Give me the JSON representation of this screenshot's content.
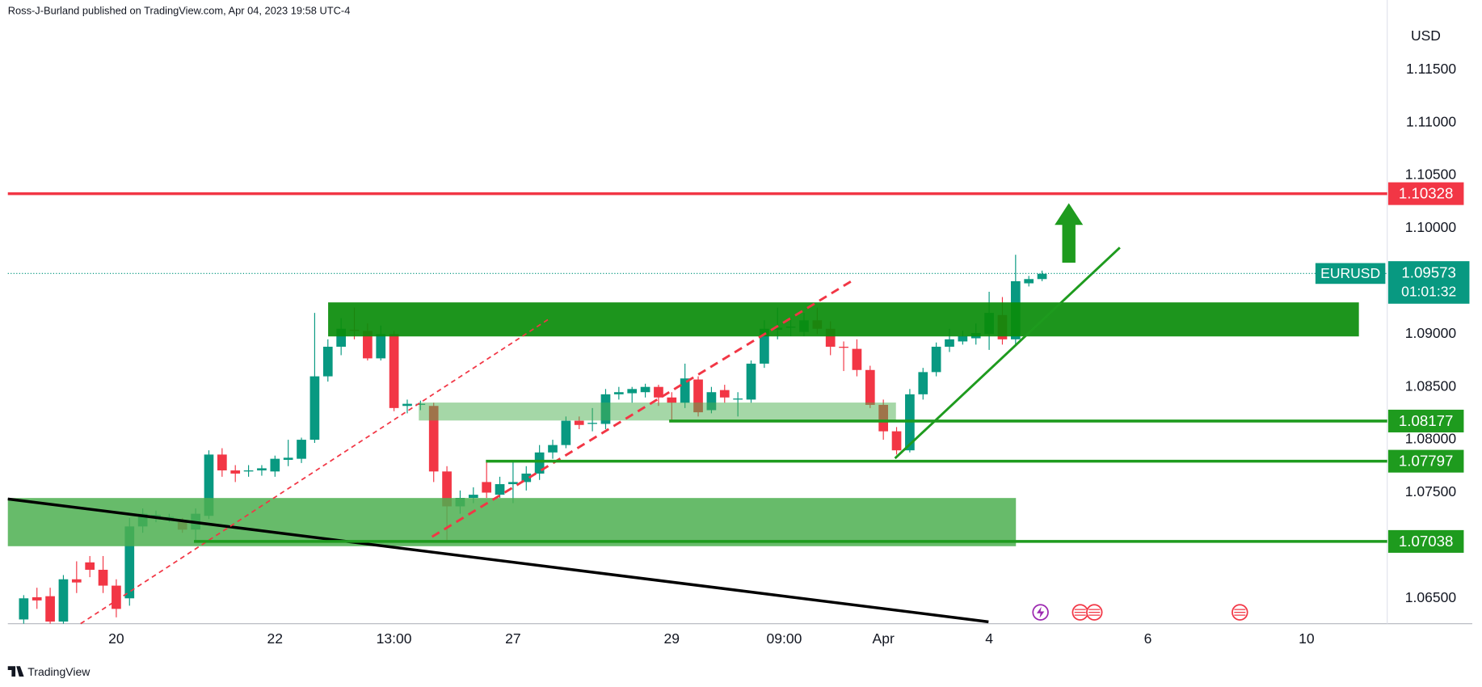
{
  "header": {
    "publisher": "Ross-J-Burland published on TradingView.com, Apr 04, 2023 19:58 UTC-4",
    "brand": "TradingView"
  },
  "chart_data": {
    "type": "candlestick",
    "currency": "USD",
    "x": [
      0,
      1,
      2,
      3,
      4,
      5,
      6,
      7,
      8,
      9,
      10,
      11,
      12,
      13,
      14,
      15,
      16,
      17,
      18,
      19,
      20,
      21,
      22,
      23,
      24,
      25,
      26,
      27,
      28,
      29,
      30,
      31,
      32,
      33,
      34,
      35,
      36,
      37,
      38,
      39,
      40,
      41,
      42,
      43,
      44,
      45,
      46,
      47,
      48,
      49,
      50,
      51,
      52,
      53,
      54,
      55,
      56,
      57,
      58,
      59,
      60,
      61,
      62,
      63,
      64,
      65,
      66,
      67,
      68,
      69,
      70,
      71,
      72,
      73,
      74,
      75,
      76,
      77
    ],
    "series": [
      {
        "name": "EURUSD",
        "up_color": "#089981",
        "down_color": "#f23645",
        "countdown": "01:01:32",
        "last": 1.09573,
        "open": [
          1.063,
          1.0651,
          1.0652,
          1.0628,
          1.0668,
          1.0684,
          1.0677,
          1.0662,
          1.065,
          1.0718,
          1.0727,
          1.0726,
          1.0722,
          1.0715,
          1.0728,
          1.0786,
          1.0771,
          1.077,
          1.0771,
          1.077,
          1.0781,
          1.0782,
          1.08,
          1.086,
          1.0888,
          1.0904,
          1.0903,
          1.0877,
          1.09,
          1.0832,
          1.0833,
          1.0832,
          1.077,
          1.0737,
          1.0745,
          1.076,
          1.0748,
          1.0758,
          1.076,
          1.0768,
          1.0788,
          1.0795,
          1.0818,
          1.0815,
          1.0815,
          1.0843,
          1.0844,
          1.0845,
          1.085,
          1.084,
          1.0835,
          1.0857,
          1.0828,
          1.0847,
          1.0838,
          1.0838,
          1.0872,
          1.0904,
          1.0906,
          1.0902,
          1.0913,
          1.0905,
          1.0888,
          1.0886,
          1.0866,
          1.0833,
          1.0808,
          1.079,
          1.0843,
          1.0864,
          1.0888,
          1.0893,
          1.0896,
          1.09,
          1.0918,
          1.0895,
          1.0948,
          1.0952
        ],
        "high": [
          1.0653,
          1.066,
          1.066,
          1.0672,
          1.0685,
          1.069,
          1.069,
          1.0668,
          1.0726,
          1.0735,
          1.0733,
          1.073,
          1.0726,
          1.0735,
          1.079,
          1.0792,
          1.0776,
          1.0776,
          1.0776,
          1.0785,
          1.08,
          1.0802,
          1.092,
          1.0895,
          1.0915,
          1.0925,
          1.091,
          1.0908,
          1.0903,
          1.0838,
          1.0837,
          1.0835,
          1.0775,
          1.0752,
          1.0755,
          1.078,
          1.0765,
          1.078,
          1.0775,
          1.0795,
          1.08,
          1.0822,
          1.0822,
          1.083,
          1.0848,
          1.085,
          1.085,
          1.0853,
          1.0852,
          1.0845,
          1.0872,
          1.086,
          1.085,
          1.0852,
          1.0845,
          1.0875,
          1.0913,
          1.0925,
          1.0915,
          1.092,
          1.0925,
          1.0912,
          1.0893,
          1.0895,
          1.087,
          1.0838,
          1.0812,
          1.0848,
          1.0868,
          1.0892,
          1.0905,
          1.0903,
          1.091,
          1.094,
          1.0935,
          1.0975,
          1.0955,
          1.096
        ],
        "low": [
          1.0626,
          1.064,
          1.0626,
          1.0626,
          1.0655,
          1.067,
          1.0655,
          1.0632,
          1.0643,
          1.0712,
          1.0722,
          1.0722,
          1.0712,
          1.0705,
          1.0725,
          1.0765,
          1.076,
          1.0765,
          1.0766,
          1.0765,
          1.0775,
          1.0778,
          1.0797,
          1.0855,
          1.088,
          1.0895,
          1.0875,
          1.0875,
          1.0827,
          1.0825,
          1.0828,
          1.076,
          1.0705,
          1.073,
          1.074,
          1.0745,
          1.0745,
          1.074,
          1.0752,
          1.0762,
          1.0782,
          1.0792,
          1.081,
          1.0808,
          1.081,
          1.0838,
          1.0835,
          1.084,
          1.0832,
          1.0818,
          1.083,
          1.0822,
          1.0825,
          1.0835,
          1.0822,
          1.0835,
          1.0868,
          1.0895,
          1.0898,
          1.0898,
          1.09,
          1.088,
          1.0865,
          1.086,
          1.083,
          1.08,
          1.0786,
          1.0788,
          1.0838,
          1.086,
          1.0883,
          1.089,
          1.089,
          1.0885,
          1.089,
          1.089,
          1.0945,
          1.095
        ],
        "close": [
          1.065,
          1.0648,
          1.0628,
          1.0668,
          1.0665,
          1.0677,
          1.0662,
          1.064,
          1.0718,
          1.073,
          1.0729,
          1.0727,
          1.0715,
          1.073,
          1.0786,
          1.0771,
          1.0768,
          1.0771,
          1.0773,
          1.0782,
          1.0783,
          1.08,
          1.086,
          1.0888,
          1.0905,
          1.0903,
          1.0877,
          1.09,
          1.083,
          1.0834,
          1.0834,
          1.077,
          1.0737,
          1.0745,
          1.0748,
          1.075,
          1.0758,
          1.076,
          1.0768,
          1.0788,
          1.0795,
          1.0818,
          1.0814,
          1.0816,
          1.0843,
          1.0845,
          1.0848,
          1.085,
          1.084,
          1.0835,
          1.0858,
          1.0826,
          1.0845,
          1.084,
          1.0839,
          1.0872,
          1.0905,
          1.0906,
          1.0907,
          1.0913,
          1.0905,
          1.0888,
          1.0887,
          1.0866,
          1.0833,
          1.0808,
          1.079,
          1.0843,
          1.0864,
          1.0888,
          1.0895,
          1.0898,
          1.0901,
          1.092,
          1.0895,
          1.095,
          1.0952,
          1.0957
        ]
      }
    ],
    "levels": [
      {
        "value": 1.10328,
        "color": "#f23645"
      },
      {
        "value": 1.08177,
        "color": "#1e9b1e"
      },
      {
        "value": 1.07797,
        "color": "#1e9b1e"
      },
      {
        "value": 1.07038,
        "color": "#1e9b1e"
      }
    ],
    "xlim": [
      -1.2,
      103.1
    ],
    "ylim": [
      1.0626,
      1.1216
    ],
    "xticks": [
      {
        "value": 7,
        "label": "20"
      },
      {
        "value": 19,
        "label": "22"
      },
      {
        "value": 28,
        "label": "13:00"
      },
      {
        "value": 37,
        "label": "27"
      },
      {
        "value": 49,
        "label": "29"
      },
      {
        "value": 57.5,
        "label": "09:00"
      },
      {
        "value": 65,
        "label": "Apr"
      },
      {
        "value": 73,
        "label": "4"
      },
      {
        "value": 85,
        "label": "6"
      },
      {
        "value": 97,
        "label": "10"
      }
    ],
    "yticks": [
      {
        "value": 1.065,
        "label": "1.06500"
      },
      {
        "value": 1.075,
        "label": "1.07500"
      },
      {
        "value": 1.08,
        "label": "1.08000"
      },
      {
        "value": 1.085,
        "label": "1.08500"
      },
      {
        "value": 1.09,
        "label": "1.09000"
      },
      {
        "value": 1.1,
        "label": "1.10000"
      },
      {
        "value": 1.105,
        "label": "1.10500"
      },
      {
        "value": 1.11,
        "label": "1.11000"
      },
      {
        "value": 1.115,
        "label": "1.11500"
      }
    ]
  }
}
